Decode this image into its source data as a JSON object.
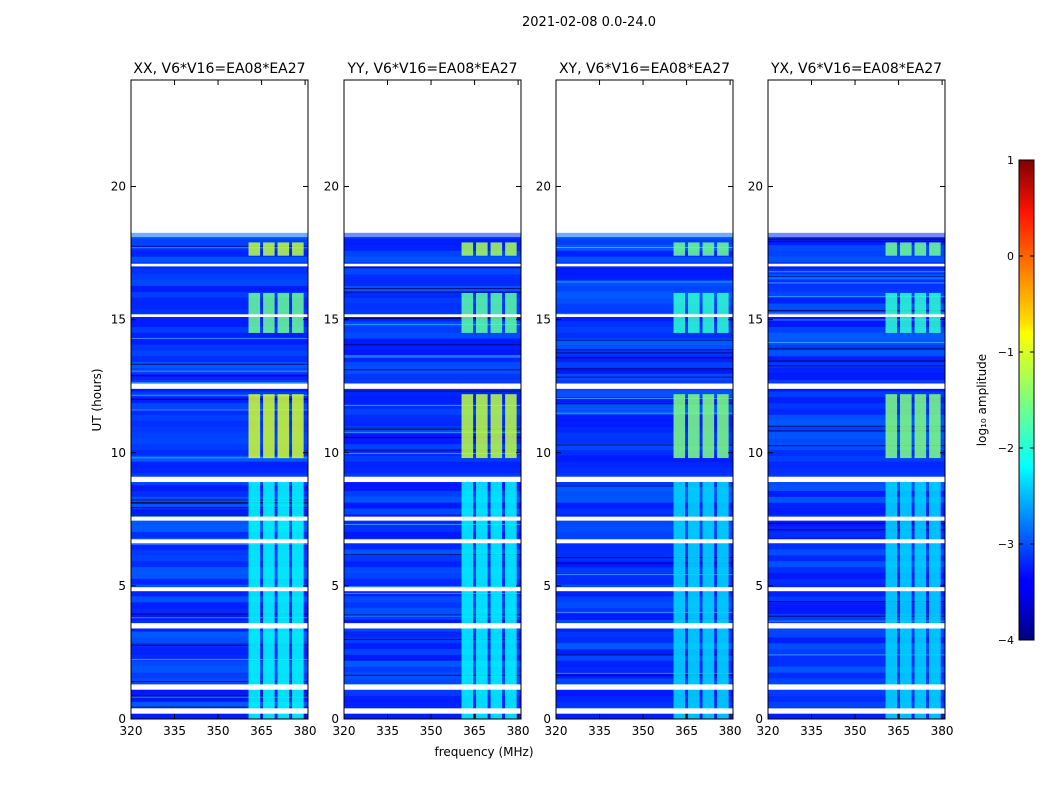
{
  "figure_title": "2021-02-08 0.0-24.0",
  "chart_data": {
    "type": "heatmap",
    "title": "2021-02-08 0.0-24.0",
    "xlabel": "frequency (MHz)",
    "ylabel": "UT (hours)",
    "xlim": [
      320,
      381
    ],
    "ylim": [
      0,
      24
    ],
    "xticks": [
      320,
      335,
      350,
      365,
      380
    ],
    "yticks": [
      0,
      5,
      10,
      15,
      20
    ],
    "data_time_range_hours": [
      0.0,
      18.1
    ],
    "panels": [
      {
        "title": "XX, V6*V16=EA08*EA27",
        "polarization": "XX",
        "rfi_strength": 1.0
      },
      {
        "title": "YY, V6*V16=EA08*EA27",
        "polarization": "YY",
        "rfi_strength": 0.95
      },
      {
        "title": "XY, V6*V16=EA08*EA27",
        "polarization": "XY",
        "rfi_strength": 0.8
      },
      {
        "title": "YX, V6*V16=EA08*EA27",
        "polarization": "YX",
        "rfi_strength": 0.8
      }
    ],
    "rfi_channels_mhz": [
      362.5,
      367.5,
      372.5,
      377.5
    ],
    "rfi_channel_width_mhz": 4,
    "rfi_peak_log_amplitude": [
      {
        "ut_range": [
          17.4,
          17.9
        ],
        "level": -1.2
      },
      {
        "ut_range": [
          14.5,
          16.0
        ],
        "level": -1.6
      },
      {
        "ut_range": [
          9.8,
          12.2
        ],
        "level": -1.1
      },
      {
        "ut_range": [
          0.0,
          9.0
        ],
        "level": -2.1
      }
    ],
    "background_log_amplitude": -3.1,
    "flagged_gaps_ut": [
      [
        0.2,
        0.4
      ],
      [
        1.1,
        1.3
      ],
      [
        3.4,
        3.6
      ],
      [
        4.8,
        4.95
      ],
      [
        6.6,
        6.75
      ],
      [
        7.45,
        7.6
      ],
      [
        8.9,
        9.1
      ],
      [
        12.4,
        12.6
      ],
      [
        15.1,
        15.2
      ],
      [
        17.0,
        17.1
      ]
    ],
    "colorbar": {
      "label": "log₁₀ amplitude",
      "range": [
        -4,
        1
      ],
      "ticks": [
        "1",
        "0",
        "−1",
        "−2",
        "−3",
        "−4"
      ],
      "colormap": "jet"
    }
  }
}
